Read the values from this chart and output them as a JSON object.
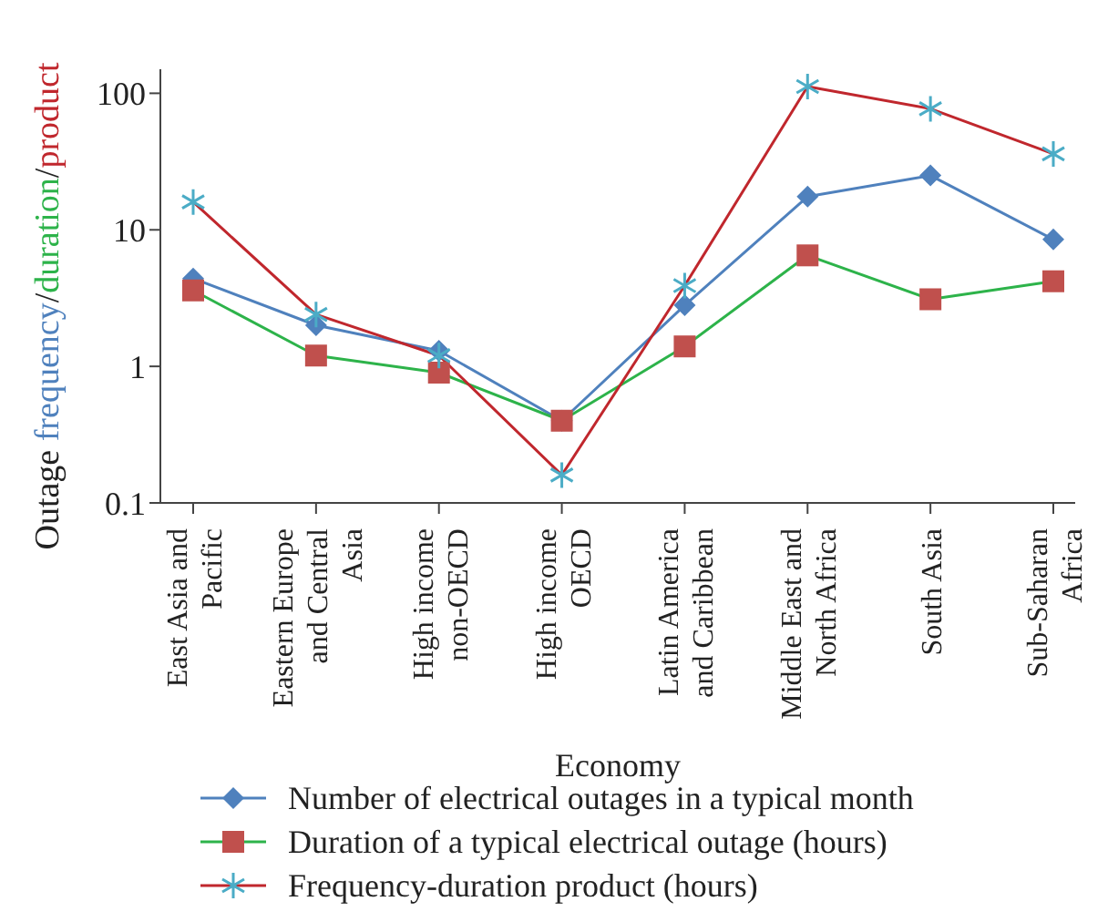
{
  "chart_data": {
    "type": "line",
    "xlabel": "Economy",
    "ylabel": "Outage frequency/duration/product",
    "categories": [
      "East Asia and Pacific",
      "Eastern Europe and Central Asia",
      "High income non-OECD",
      "High income OECD",
      "Latin America and Caribbean",
      "Middle East and North Africa",
      "South Asia",
      "Sub-Saharan Africa"
    ],
    "series": [
      {
        "name": "Number of electrical outages in a typical month",
        "color": "#4f81bd",
        "marker": "diamond",
        "colors": [
          "#4f81bd",
          "#4f81bd",
          "#4f81bd",
          "#4f81bd",
          "#4f81bd",
          "#4f81bd",
          "#4f81bd",
          "#4f81bd"
        ],
        "values": [
          4.4,
          2.0,
          1.3,
          0.4,
          2.8,
          17.5,
          25,
          8.5
        ]
      },
      {
        "name": "Duration of a typical electrical outage (hours)",
        "color": "#2db34a",
        "marker": "square",
        "colors": [
          "#c0504d",
          "#c0504d",
          "#c0504d",
          "#c0504d",
          "#c0504d",
          "#c0504d",
          "#c0504d",
          "#c0504d"
        ],
        "values": [
          3.6,
          1.2,
          0.9,
          0.4,
          1.4,
          6.5,
          3.1,
          4.2
        ]
      },
      {
        "name": "Frequency-duration product (hours)",
        "color": "#c0272d",
        "marker": "cross",
        "colors": [
          "#4bacc6",
          "#4bacc6",
          "#4bacc6",
          "#4bacc6",
          "#4bacc6",
          "#4bacc6",
          "#4bacc6",
          "#4bacc6"
        ],
        "values": [
          16,
          2.4,
          1.2,
          0.16,
          3.9,
          112,
          77,
          36
        ]
      }
    ],
    "log": "y",
    "ylim": [
      0.1,
      150
    ],
    "yticks": [
      0.1,
      1,
      10,
      100
    ],
    "grid": false,
    "legend": "bottom"
  }
}
